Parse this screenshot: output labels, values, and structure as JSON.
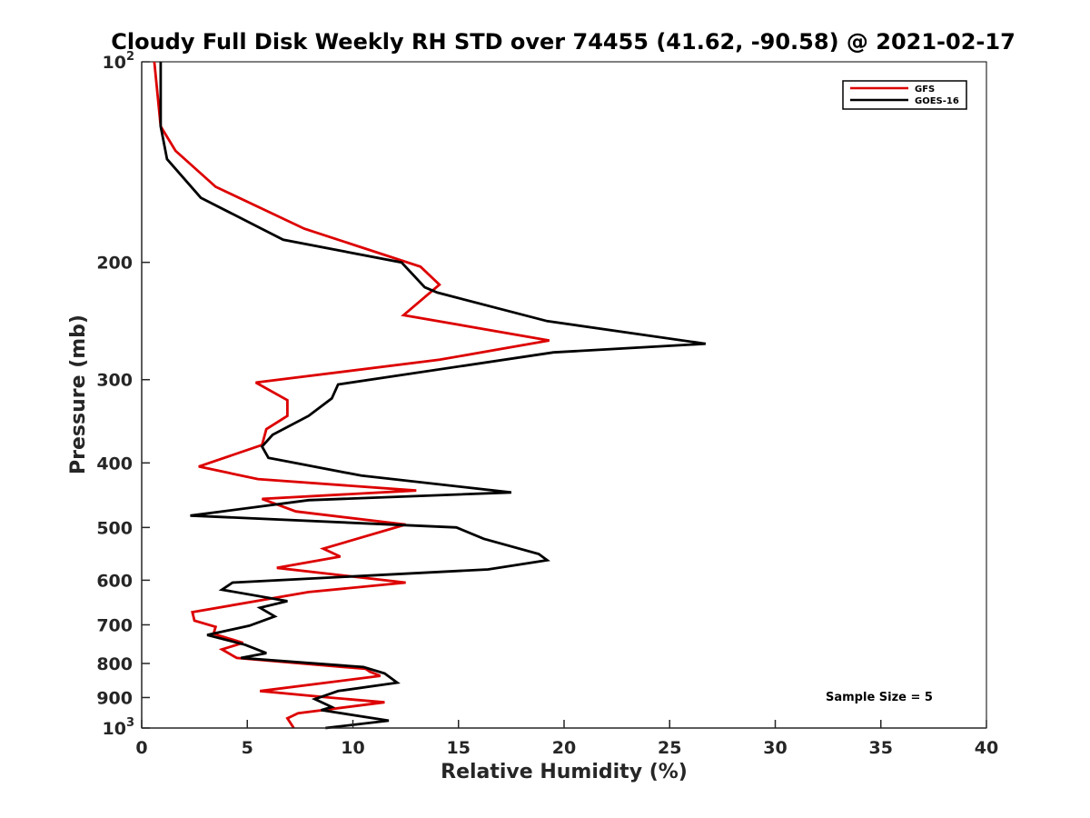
{
  "chart_data": {
    "type": "line",
    "title": "Cloudy Full Disk Weekly RH STD over 74455 (41.62, -90.58) @ 2021-02-17",
    "xlabel": "Relative Humidity (%)",
    "ylabel": "Pressure (mb)",
    "xlim": [
      0,
      40
    ],
    "ylim": [
      100,
      1000
    ],
    "y_scale": "log",
    "y_reversed": true,
    "grid": false,
    "legend_position": "top-right",
    "x_ticks": [
      {
        "value": 0,
        "label": "0"
      },
      {
        "value": 5,
        "label": "5"
      },
      {
        "value": 10,
        "label": "10"
      },
      {
        "value": 15,
        "label": "15"
      },
      {
        "value": 20,
        "label": "20"
      },
      {
        "value": 25,
        "label": "25"
      },
      {
        "value": 30,
        "label": "30"
      },
      {
        "value": 35,
        "label": "35"
      },
      {
        "value": 40,
        "label": "40"
      }
    ],
    "y_ticks": [
      {
        "value": 100,
        "base": "10",
        "exp": "2"
      },
      {
        "value": 200,
        "label": "200"
      },
      {
        "value": 300,
        "label": "300"
      },
      {
        "value": 400,
        "label": "400"
      },
      {
        "value": 500,
        "label": "500"
      },
      {
        "value": 600,
        "label": "600"
      },
      {
        "value": 700,
        "label": "700"
      },
      {
        "value": 800,
        "label": "800"
      },
      {
        "value": 900,
        "label": "900"
      },
      {
        "value": 1000,
        "base": "10",
        "exp": "3"
      }
    ],
    "annotation": "Sample Size = 5",
    "series": [
      {
        "name": "GFS",
        "color": "#dd0000",
        "points": [
          [
            0.6,
            100
          ],
          [
            0.9,
            125
          ],
          [
            1.6,
            136
          ],
          [
            3.5,
            154
          ],
          [
            7.7,
            178
          ],
          [
            13.2,
            203
          ],
          [
            14.1,
            216
          ],
          [
            12.4,
            240
          ],
          [
            19.3,
            262
          ],
          [
            14.1,
            280
          ],
          [
            5.4,
            303
          ],
          [
            6.9,
            322
          ],
          [
            6.9,
            340
          ],
          [
            5.9,
            356
          ],
          [
            5.7,
            376
          ],
          [
            2.7,
            405
          ],
          [
            5.5,
            423
          ],
          [
            13.0,
            440
          ],
          [
            5.7,
            453
          ],
          [
            7.3,
            473
          ],
          [
            12.5,
            495
          ],
          [
            8.6,
            538
          ],
          [
            9.4,
            553
          ],
          [
            6.4,
            575
          ],
          [
            12.5,
            605
          ],
          [
            7.9,
            625
          ],
          [
            2.4,
            670
          ],
          [
            2.5,
            690
          ],
          [
            3.5,
            705
          ],
          [
            3.4,
            722
          ],
          [
            4.8,
            745
          ],
          [
            3.8,
            762
          ],
          [
            4.5,
            785
          ],
          [
            10.6,
            815
          ],
          [
            10.8,
            823
          ],
          [
            11.3,
            835
          ],
          [
            5.6,
            880
          ],
          [
            8.9,
            900
          ],
          [
            11.5,
            915
          ],
          [
            7.4,
            950
          ],
          [
            6.9,
            967
          ],
          [
            7.2,
            1000
          ]
        ]
      },
      {
        "name": "GOES-16",
        "color": "#000000",
        "points": [
          [
            0.9,
            100
          ],
          [
            0.9,
            125
          ],
          [
            1.2,
            140
          ],
          [
            2.8,
            160
          ],
          [
            6.7,
            185
          ],
          [
            12.3,
            200
          ],
          [
            13.4,
            218
          ],
          [
            14.0,
            222
          ],
          [
            19.2,
            245
          ],
          [
            26.7,
            265
          ],
          [
            19.5,
            273
          ],
          [
            9.3,
            305
          ],
          [
            9.0,
            320
          ],
          [
            7.9,
            340
          ],
          [
            6.2,
            363
          ],
          [
            5.7,
            378
          ],
          [
            6.0,
            393
          ],
          [
            10.4,
            418
          ],
          [
            17.5,
            443
          ],
          [
            7.9,
            455
          ],
          [
            2.3,
            480
          ],
          [
            14.9,
            500
          ],
          [
            16.2,
            520
          ],
          [
            18.8,
            548
          ],
          [
            19.2,
            560
          ],
          [
            16.4,
            578
          ],
          [
            4.3,
            605
          ],
          [
            3.8,
            620
          ],
          [
            6.9,
            645
          ],
          [
            5.6,
            660
          ],
          [
            6.3,
            680
          ],
          [
            5.1,
            702
          ],
          [
            3.1,
            725
          ],
          [
            4.9,
            750
          ],
          [
            5.9,
            772
          ],
          [
            4.7,
            785
          ],
          [
            10.5,
            810
          ],
          [
            11.5,
            828
          ],
          [
            12.1,
            855
          ],
          [
            9.3,
            880
          ],
          [
            8.2,
            905
          ],
          [
            9.0,
            930
          ],
          [
            8.5,
            940
          ],
          [
            11.7,
            975
          ],
          [
            8.7,
            1000
          ]
        ]
      }
    ]
  }
}
